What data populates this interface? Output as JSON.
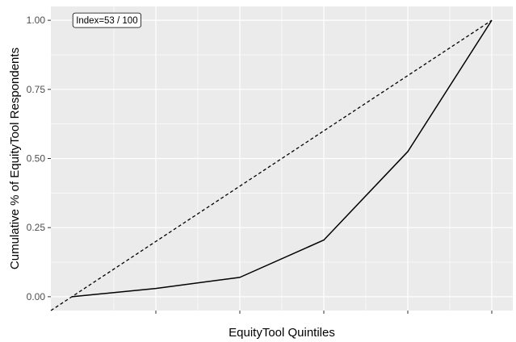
{
  "chart_data": {
    "type": "line",
    "title": "",
    "xlabel": "EquityTool Quintiles",
    "ylabel": "Cumulative % of EquityTool Respondents",
    "x": [
      0,
      1,
      2,
      3,
      4,
      5
    ],
    "xlim": [
      -0.25,
      5.25
    ],
    "ylim": [
      -0.05,
      1.05
    ],
    "x_tick_labels": [
      "",
      "",
      "",
      "",
      ""
    ],
    "y_ticks": [
      0.0,
      0.25,
      0.5,
      0.75,
      1.0
    ],
    "y_tick_labels": [
      "0.00",
      "0.25",
      "0.50",
      "0.75",
      "1.00"
    ],
    "series": [
      {
        "values": [
          0.0,
          0.03,
          0.07,
          0.205,
          0.525,
          1.0
        ],
        "line_style": "solid",
        "color": "#000000"
      }
    ],
    "reference_line": {
      "type": "equality",
      "from": [
        -0.25,
        -0.05
      ],
      "to": [
        5.0,
        1.0
      ],
      "line_style": "dashed",
      "color": "#000000"
    },
    "annotation": {
      "text": "Index=53 / 100",
      "x": 0.05,
      "y": 1.0
    },
    "grid": true,
    "legend": "none",
    "panel_background": "#ebebeb",
    "grid_color": "#ffffff"
  }
}
